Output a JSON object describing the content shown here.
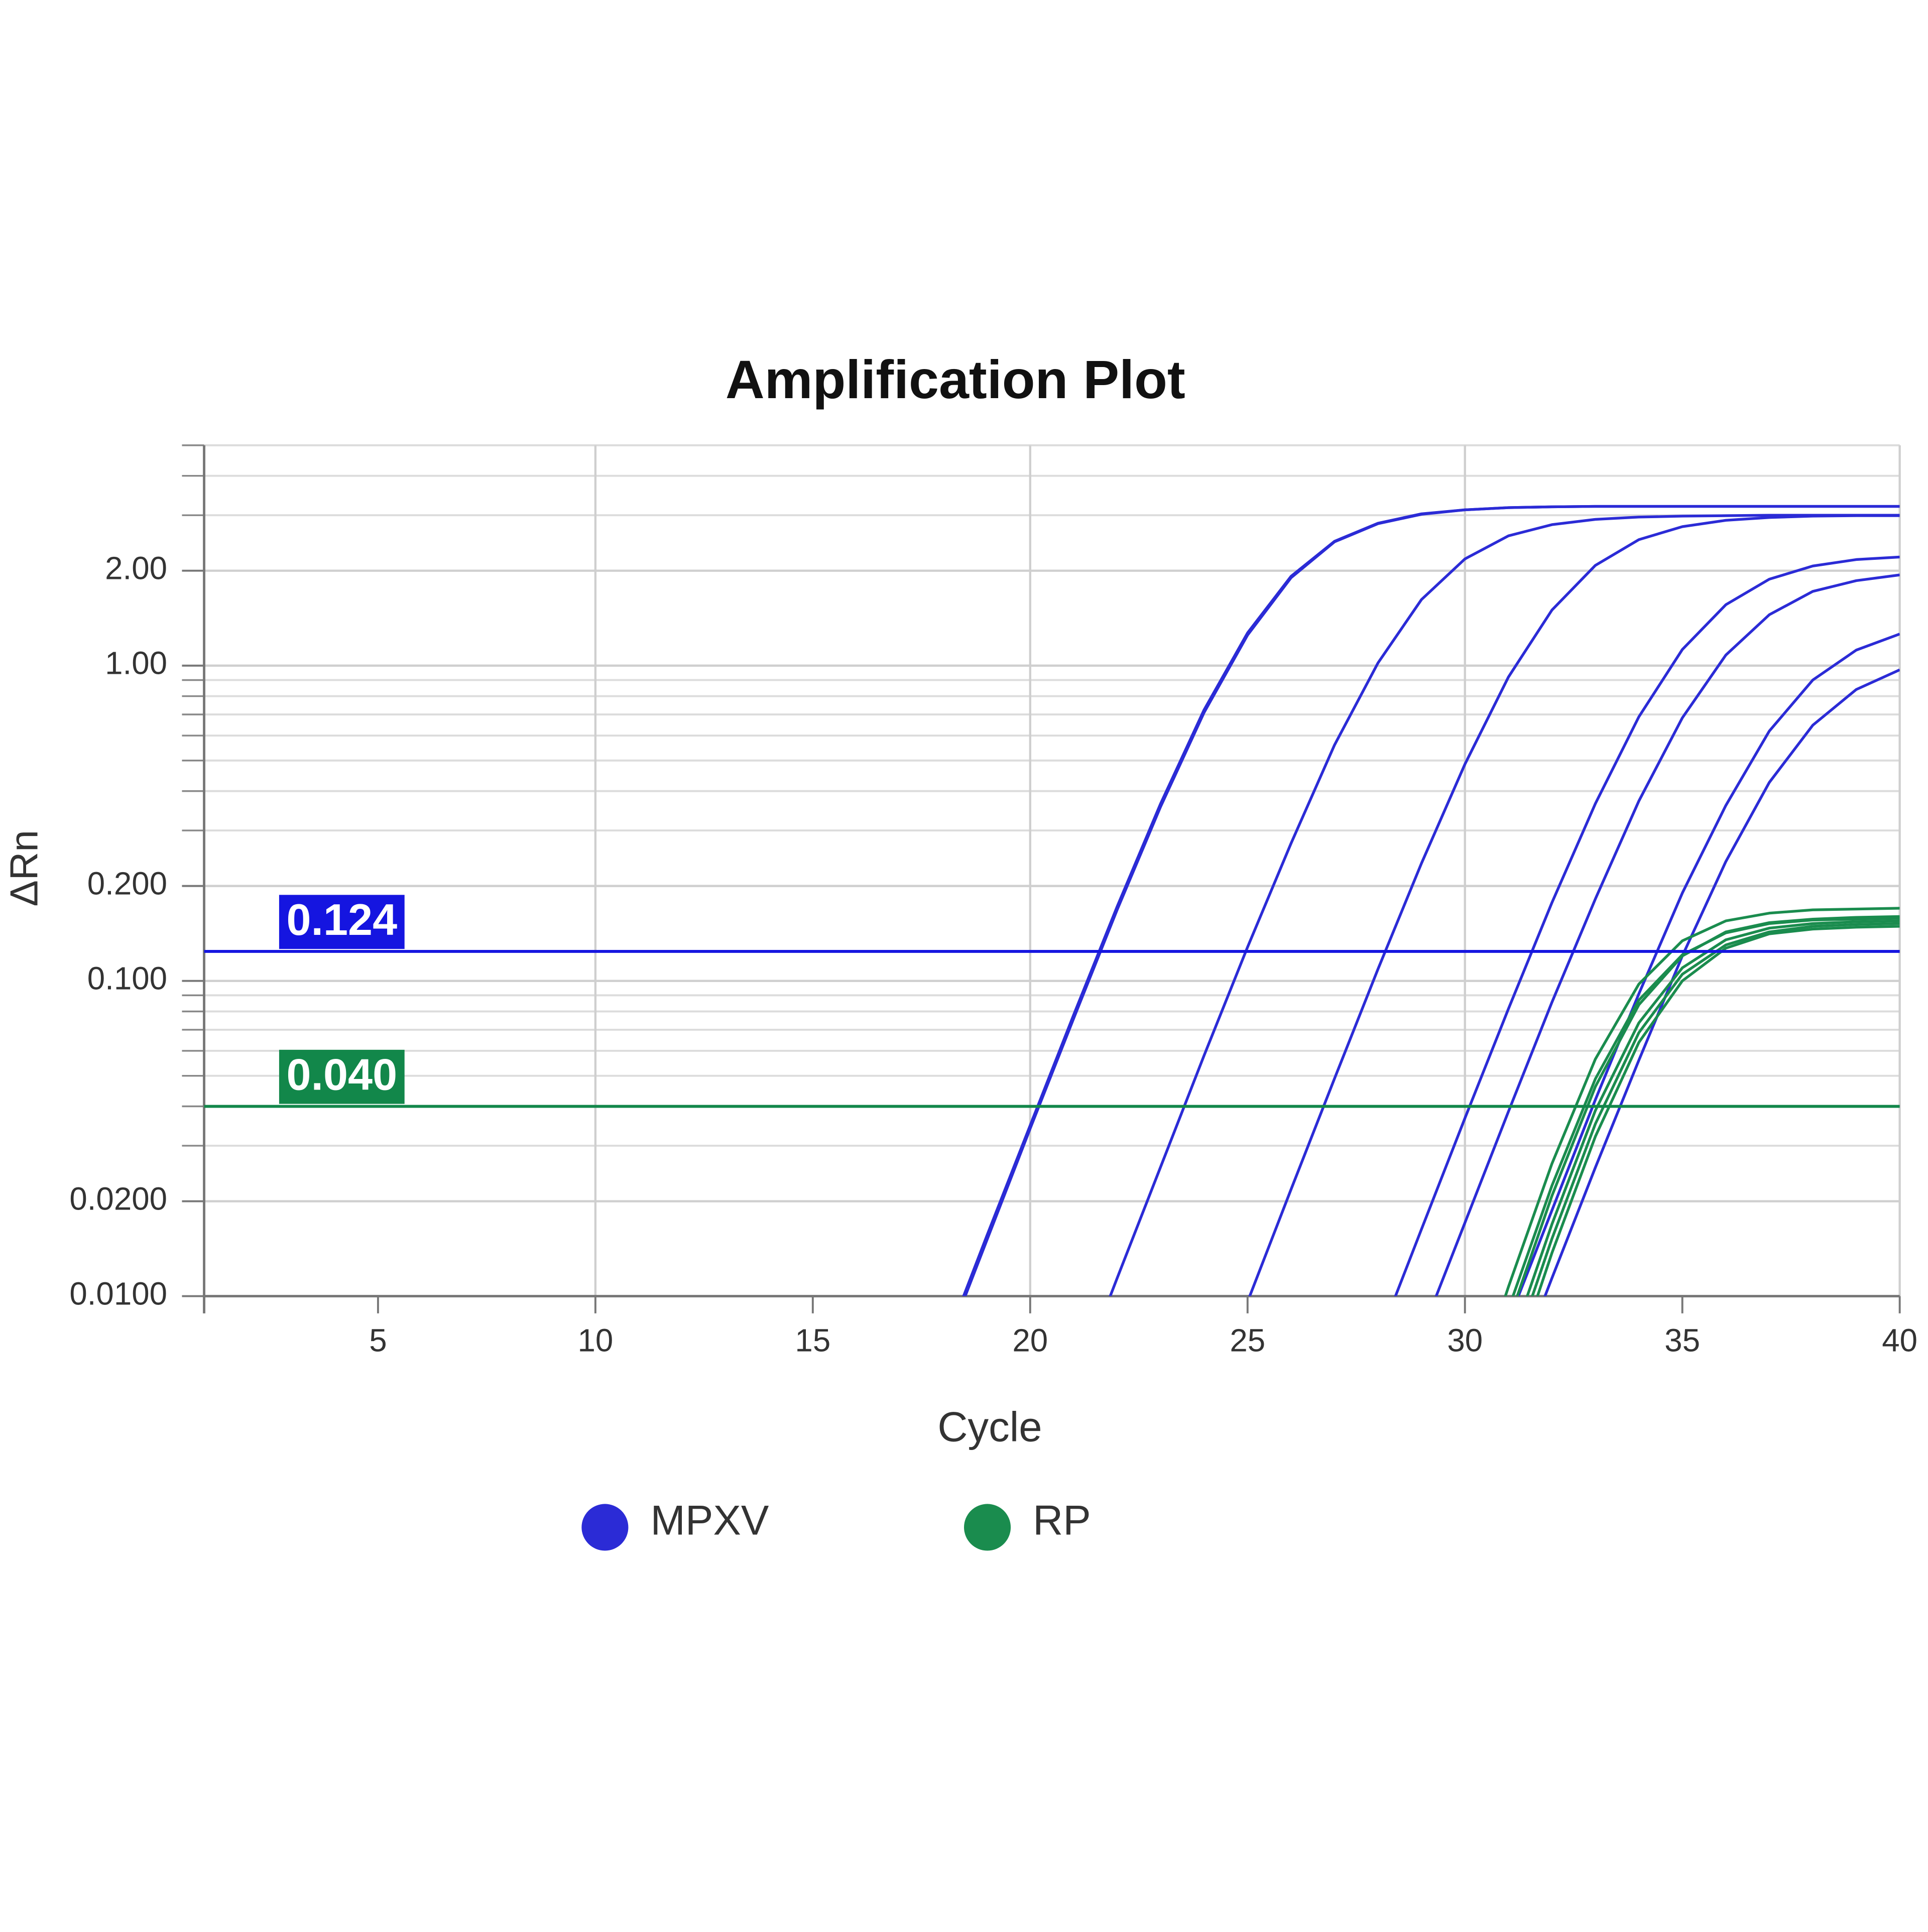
{
  "chart_data": {
    "type": "line",
    "title": "Amplification Plot",
    "x_label": "Cycle",
    "y_label": "ΔRn",
    "log_y": true,
    "grid": true,
    "minor_grid": true,
    "xgrid_every": 2,
    "legend": "bottom",
    "xlim": [
      1,
      40
    ],
    "xticks": [
      5,
      10,
      15,
      20,
      25,
      30,
      35,
      40
    ],
    "ylim": [
      0.01,
      5
    ],
    "yticks": [
      {
        "value": 0.01,
        "label": "0.0100"
      },
      {
        "value": 0.02,
        "label": "0.0200"
      },
      {
        "value": 0.1,
        "label": "0.100"
      },
      {
        "value": 0.2,
        "label": "0.200"
      },
      {
        "value": 1,
        "label": "1.00"
      },
      {
        "value": 2,
        "label": "2.00"
      }
    ],
    "x": [
      1,
      2,
      3,
      4,
      5,
      6,
      7,
      8,
      9,
      10,
      11,
      12,
      13,
      14,
      15,
      16,
      17,
      18,
      19,
      20,
      21,
      22,
      23,
      24,
      25,
      26,
      27,
      28,
      29,
      30,
      31,
      32,
      33,
      34,
      35,
      36,
      37,
      38,
      39,
      40
    ],
    "thresholds": [
      {
        "value": 0.124,
        "color": "#1515e0"
      },
      {
        "value": 0.04,
        "label": "0.040",
        "color": "#12874a"
      }
    ],
    "series": [
      {
        "name": "MPXV",
        "color": "#2b2bd6",
        "curves": [
          [
            null,
            null,
            null,
            null,
            null,
            null,
            null,
            null,
            null,
            null,
            null,
            null,
            null,
            null,
            null,
            null,
            null,
            0.0068,
            0.0155,
            0.0348,
            0.078,
            0.172,
            0.365,
            0.724,
            1.27,
            1.92,
            2.48,
            2.83,
            3.03,
            3.12,
            3.17,
            3.19,
            3.2,
            3.2,
            3.2,
            3.2,
            3.2,
            3.2,
            3.2,
            3.2
          ],
          [
            null,
            null,
            null,
            null,
            null,
            null,
            null,
            null,
            null,
            null,
            null,
            null,
            null,
            null,
            null,
            null,
            null,
            0.0066,
            0.015,
            0.034,
            0.076,
            0.168,
            0.357,
            0.71,
            1.25,
            1.9,
            2.47,
            2.82,
            3.02,
            3.12,
            3.17,
            3.19,
            3.2,
            3.2,
            3.2,
            3.2,
            3.2,
            3.2,
            3.2,
            3.2
          ],
          [
            null,
            null,
            null,
            null,
            null,
            null,
            null,
            null,
            null,
            null,
            null,
            null,
            null,
            null,
            null,
            null,
            null,
            null,
            null,
            null,
            0.005,
            0.0114,
            0.0257,
            0.058,
            0.128,
            0.273,
            0.56,
            1.02,
            1.62,
            2.18,
            2.58,
            2.8,
            2.91,
            2.96,
            2.98,
            2.99,
            3.0,
            3.0,
            3.0,
            3.0
          ],
          [
            null,
            null,
            null,
            null,
            null,
            null,
            null,
            null,
            null,
            null,
            null,
            null,
            null,
            null,
            null,
            null,
            null,
            null,
            null,
            null,
            null,
            null,
            null,
            null,
            0.0096,
            0.0218,
            0.049,
            0.109,
            0.236,
            0.487,
            0.92,
            1.5,
            2.08,
            2.51,
            2.76,
            2.89,
            2.95,
            2.98,
            2.99,
            2.99
          ],
          [
            null,
            null,
            null,
            null,
            null,
            null,
            null,
            null,
            null,
            null,
            null,
            null,
            null,
            null,
            null,
            null,
            null,
            null,
            null,
            null,
            null,
            null,
            null,
            null,
            null,
            null,
            null,
            0.0072,
            0.0163,
            0.0367,
            0.0815,
            0.177,
            0.365,
            0.688,
            1.125,
            1.56,
            1.88,
            2.07,
            2.17,
            2.21
          ],
          [
            null,
            null,
            null,
            null,
            null,
            null,
            null,
            null,
            null,
            null,
            null,
            null,
            null,
            null,
            null,
            null,
            null,
            null,
            null,
            null,
            null,
            null,
            null,
            null,
            null,
            null,
            null,
            null,
            0.0076,
            0.0171,
            0.0385,
            0.0855,
            0.182,
            0.372,
            0.683,
            1.08,
            1.45,
            1.72,
            1.86,
            1.94
          ],
          [
            null,
            null,
            null,
            null,
            null,
            null,
            null,
            null,
            null,
            null,
            null,
            null,
            null,
            null,
            null,
            null,
            null,
            null,
            null,
            null,
            null,
            null,
            null,
            null,
            null,
            null,
            null,
            null,
            null,
            null,
            0.0083,
            0.0187,
            0.042,
            0.091,
            0.19,
            0.36,
            0.62,
            0.9,
            1.12,
            1.26
          ],
          [
            null,
            null,
            null,
            null,
            null,
            null,
            null,
            null,
            null,
            null,
            null,
            null,
            null,
            null,
            null,
            null,
            null,
            null,
            null,
            null,
            null,
            null,
            null,
            null,
            null,
            null,
            null,
            null,
            null,
            null,
            0.005,
            0.0114,
            0.0256,
            0.056,
            0.12,
            0.239,
            0.426,
            0.647,
            0.84,
            0.97
          ]
        ]
      },
      {
        "name": "RP",
        "color": "#1a8c4e",
        "curves": [
          [
            null,
            null,
            null,
            null,
            null,
            null,
            null,
            null,
            null,
            null,
            null,
            null,
            null,
            null,
            null,
            null,
            null,
            null,
            null,
            null,
            null,
            null,
            null,
            null,
            null,
            null,
            null,
            null,
            null,
            0.0041,
            0.0107,
            0.0263,
            0.0565,
            0.0977,
            0.134,
            0.155,
            0.164,
            0.168,
            0.169,
            0.17
          ],
          [
            null,
            null,
            null,
            null,
            null,
            null,
            null,
            null,
            null,
            null,
            null,
            null,
            null,
            null,
            null,
            null,
            null,
            null,
            null,
            null,
            null,
            null,
            null,
            null,
            null,
            null,
            null,
            null,
            null,
            0.0032,
            0.0083,
            0.0208,
            0.0462,
            0.084,
            0.12,
            0.143,
            0.153,
            0.157,
            0.159,
            0.16
          ],
          [
            null,
            null,
            null,
            null,
            null,
            null,
            null,
            null,
            null,
            null,
            null,
            null,
            null,
            null,
            null,
            null,
            null,
            null,
            null,
            null,
            null,
            null,
            null,
            null,
            null,
            null,
            null,
            null,
            null,
            0.0025,
            0.0067,
            0.0169,
            0.0388,
            0.0736,
            0.11,
            0.135,
            0.147,
            0.152,
            0.154,
            0.155
          ],
          [
            null,
            null,
            null,
            null,
            null,
            null,
            null,
            null,
            null,
            null,
            null,
            null,
            null,
            null,
            null,
            null,
            null,
            null,
            null,
            null,
            null,
            null,
            null,
            null,
            null,
            null,
            null,
            null,
            null,
            null,
            0.0053,
            0.0137,
            0.0321,
            0.0638,
            0.1,
            0.127,
            0.141,
            0.146,
            0.148,
            0.149
          ],
          [
            null,
            null,
            null,
            null,
            null,
            null,
            null,
            null,
            null,
            null,
            null,
            null,
            null,
            null,
            null,
            null,
            null,
            null,
            null,
            null,
            null,
            null,
            null,
            null,
            null,
            null,
            null,
            null,
            null,
            0.0035,
            0.0091,
            0.0224,
            0.0489,
            0.0869,
            0.121,
            0.142,
            0.152,
            0.156,
            0.157,
            0.158
          ],
          [
            null,
            null,
            null,
            null,
            null,
            null,
            null,
            null,
            null,
            null,
            null,
            null,
            null,
            null,
            null,
            null,
            null,
            null,
            null,
            null,
            null,
            null,
            null,
            null,
            null,
            null,
            null,
            null,
            null,
            null,
            0.006,
            0.0152,
            0.0352,
            0.0685,
            0.105,
            0.13,
            0.143,
            0.149,
            0.151,
            0.152
          ]
        ]
      }
    ]
  }
}
